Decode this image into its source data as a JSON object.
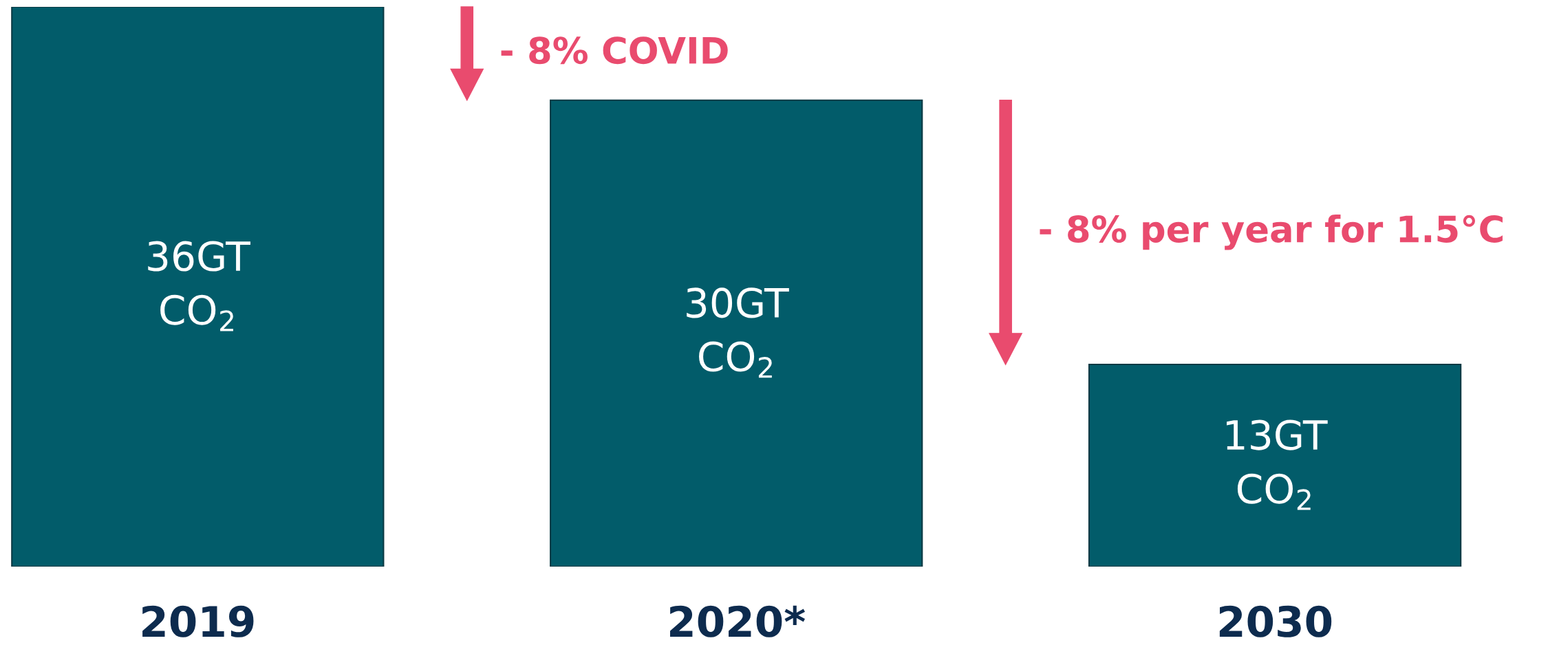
{
  "chart_data": {
    "type": "bar",
    "categories": [
      "2019",
      "2020*",
      "2030"
    ],
    "values": [
      36,
      30,
      13
    ],
    "value_labels": [
      "36GT\nCO$_{2}$",
      "30GT\nCO$_{2}$",
      "13GT\nCO$_{2}$"
    ],
    "color": "#025c6a",
    "annotations": [
      "- 8% COVID",
      "- 8% per year for 1.5°C"
    ],
    "grid": false,
    "legend": false
  }
}
